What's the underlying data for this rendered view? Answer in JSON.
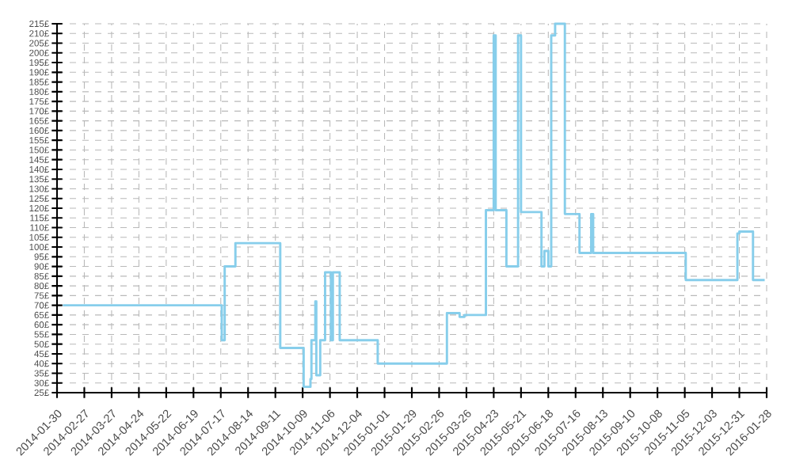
{
  "chart_data": {
    "type": "step",
    "grid": true,
    "marker": "none",
    "line_style": "solid",
    "x": [
      "2014-02-05",
      "2014-07-18",
      "2014-07-21",
      "2014-08-01",
      "2014-09-16",
      "2014-10-10",
      "2014-10-17",
      "2014-10-18",
      "2014-10-22",
      "2014-10-23",
      "2014-10-27",
      "2014-11-01",
      "2014-11-07",
      "2014-11-09",
      "2014-11-16",
      "2014-12-25",
      "2015-03-06",
      "2015-03-19",
      "2015-03-24",
      "2015-04-15",
      "2015-04-23",
      "2015-04-25",
      "2015-05-06",
      "2015-05-18",
      "2015-05-21",
      "2015-06-11",
      "2015-06-14",
      "2015-06-18",
      "2015-06-21",
      "2015-06-25",
      "2015-07-05",
      "2015-07-20",
      "2015-08-01",
      "2015-08-03",
      "2015-11-06",
      "2015-12-29",
      "2015-12-31",
      "2016-01-14",
      "2016-01-26"
    ],
    "series": [
      {
        "color": "#87ceeb",
        "values": [
          70,
          52,
          90,
          102,
          48,
          28,
          32,
          52,
          72,
          34,
          52,
          87,
          52,
          87,
          52,
          40,
          66,
          64,
          65,
          119,
          209,
          119,
          90,
          209,
          118,
          90,
          98,
          90,
          209,
          215,
          117,
          97,
          117,
          97,
          83,
          107,
          108,
          83,
          83
        ]
      }
    ],
    "xlim": [
      "2014-01-30",
      "2016-01-28"
    ],
    "xticks": [
      "2014-01-30",
      "2014-02-27",
      "2014-03-27",
      "2014-04-24",
      "2014-05-22",
      "2014-06-19",
      "2014-07-17",
      "2014-08-14",
      "2014-09-11",
      "2014-10-09",
      "2014-11-06",
      "2014-12-04",
      "2015-01-01",
      "2015-01-29",
      "2015-02-26",
      "2015-03-26",
      "2015-04-23",
      "2015-05-21",
      "2015-06-18",
      "2015-07-16",
      "2015-08-13",
      "2015-09-10",
      "2015-10-08",
      "2015-11-05",
      "2015-12-03",
      "2015-12-31",
      "2016-01-28"
    ],
    "ylim": [
      25,
      215
    ],
    "yticks": [
      {
        "value": 25,
        "label": "25£"
      },
      {
        "value": 30,
        "label": "30£"
      },
      {
        "value": 35,
        "label": "35£"
      },
      {
        "value": 40,
        "label": "40£"
      },
      {
        "value": 45,
        "label": "45£"
      },
      {
        "value": 50,
        "label": "50£"
      },
      {
        "value": 55,
        "label": "55£"
      },
      {
        "value": 60,
        "label": "60£"
      },
      {
        "value": 65,
        "label": "65£"
      },
      {
        "value": 70,
        "label": "70£"
      },
      {
        "value": 75,
        "label": "75£"
      },
      {
        "value": 80,
        "label": "80£"
      },
      {
        "value": 85,
        "label": "85£"
      },
      {
        "value": 90,
        "label": "90£"
      },
      {
        "value": 95,
        "label": "95£"
      },
      {
        "value": 100,
        "label": "100£"
      },
      {
        "value": 105,
        "label": "105£"
      },
      {
        "value": 110,
        "label": "110£"
      },
      {
        "value": 115,
        "label": "115£"
      },
      {
        "value": 120,
        "label": "120£"
      },
      {
        "value": 125,
        "label": "125£"
      },
      {
        "value": 130,
        "label": "130£"
      },
      {
        "value": 135,
        "label": "135£"
      },
      {
        "value": 140,
        "label": "140£"
      },
      {
        "value": 145,
        "label": "145£"
      },
      {
        "value": 150,
        "label": "150£"
      },
      {
        "value": 155,
        "label": "155£"
      },
      {
        "value": 160,
        "label": "160£"
      },
      {
        "value": 165,
        "label": "165£"
      },
      {
        "value": 170,
        "label": "170£"
      },
      {
        "value": 175,
        "label": "175£"
      },
      {
        "value": 180,
        "label": "180£"
      },
      {
        "value": 185,
        "label": "185£"
      },
      {
        "value": 190,
        "label": "190£"
      },
      {
        "value": 195,
        "label": "195£"
      },
      {
        "value": 200,
        "label": "200£"
      },
      {
        "value": 205,
        "label": "205£"
      },
      {
        "value": 210,
        "label": "210£"
      },
      {
        "value": 215,
        "label": "215£"
      }
    ]
  }
}
